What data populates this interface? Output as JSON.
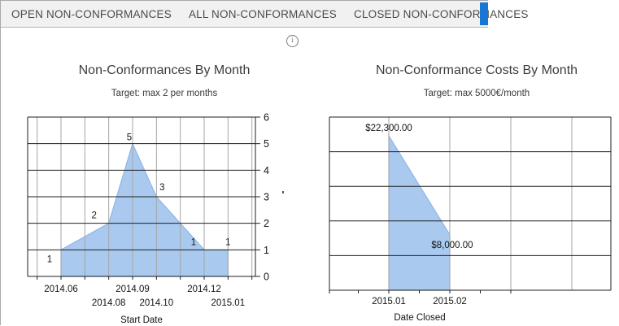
{
  "tab_bar": {
    "tabs": [
      {
        "label": "OPEN NON-CONFORMANCES"
      },
      {
        "label": "ALL NON-CONFORMANCES"
      },
      {
        "label": "CLOSED NON-CONFORMANCES"
      }
    ]
  },
  "info": {
    "glyph": "i"
  },
  "colors": {
    "accent_blue": "#1777d3",
    "area_fill": "#a9c9ef",
    "area_stroke": "#8fb7e8",
    "grid_horizontal": "#1f1f1f",
    "grid_vertical": "#a6a6a6",
    "axis": "#1f1f1f"
  },
  "chart_data": [
    {
      "type": "area",
      "title": "Non-Conformances By Month",
      "subtitle": "Target: max 2 per months",
      "xlabel": "Start Date",
      "ylabel": "",
      "ylim": [
        0,
        6
      ],
      "ystep": 1,
      "y_tick_labels_visible": true,
      "grid": true,
      "legend": "none",
      "points": [
        {
          "x": "2014.06",
          "i": 0,
          "value": 1,
          "label": "1"
        },
        {
          "x": "2014.08",
          "i": 2,
          "value": 2,
          "label": "2"
        },
        {
          "x": "2014.09",
          "i": 3,
          "value": 5,
          "label": "5"
        },
        {
          "x": "2014.10",
          "i": 4,
          "value": 3,
          "label": "3"
        },
        {
          "x": "2014.12",
          "i": 6,
          "value": 1,
          "label": "1"
        },
        {
          "x": "2015.01",
          "i": 7,
          "value": 1,
          "label": "1"
        }
      ],
      "x_ticks": {
        "row1": [
          {
            "label": "2014.06",
            "i": 0
          },
          {
            "label": "2014.09",
            "i": 3
          },
          {
            "label": "2014.12",
            "i": 6
          }
        ],
        "row2": [
          {
            "label": "2014.08",
            "i": 2
          },
          {
            "label": "2014.10",
            "i": 4
          },
          {
            "label": "2015.01",
            "i": 7
          }
        ]
      }
    },
    {
      "type": "area",
      "title": "Non-Conformance Costs By Month",
      "subtitle": "Target: max 5000€/month",
      "xlabel": "Date Closed",
      "ylabel": "",
      "ylim": [
        0,
        25000
      ],
      "ystep": 5000,
      "y_tick_labels_visible": false,
      "grid": true,
      "legend": "none",
      "points": [
        {
          "x": "2015.01",
          "i": 0,
          "value": 22300,
          "label": "$22,300.00"
        },
        {
          "x": "2015.02",
          "i": 1,
          "value": 8000,
          "label": "$8,000.00"
        }
      ],
      "x_ticks": {
        "row1": [
          {
            "label": "2015.01",
            "i": 0
          },
          {
            "label": "2015.02",
            "i": 1
          }
        ]
      }
    }
  ]
}
